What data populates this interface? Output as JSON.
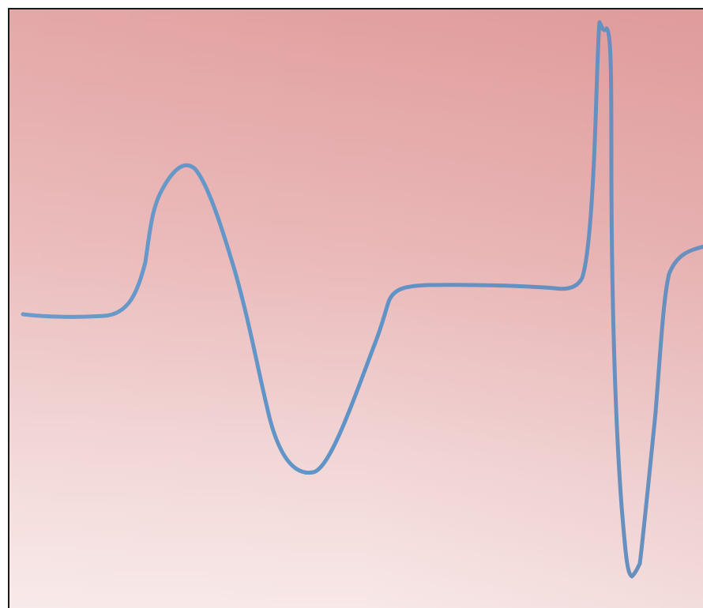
{
  "diagram": {
    "colors": {
      "background_top": "#e2a0a0",
      "background_bottom": "#f8e8e8",
      "frame": "#1a1a1a",
      "trace": "#5f93c6"
    },
    "trace": {
      "description_free": true
    }
  }
}
